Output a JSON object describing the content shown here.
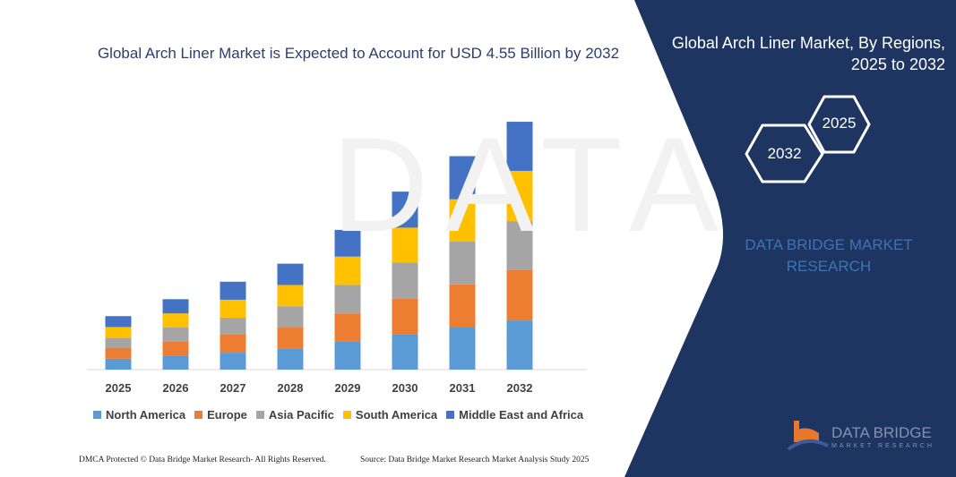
{
  "header": {
    "title": "Global Arch Liner Market is Expected to Account for USD 4.55  Billion by 2032"
  },
  "side_panel": {
    "title_line1": "Global Arch Liner Market, By Regions,",
    "title_line2": "2025 to 2032",
    "hex_start": "2025",
    "hex_end": "2032",
    "brand_line1": "DATA BRIDGE MARKET",
    "brand_line2": "RESEARCH"
  },
  "logo": {
    "line1": "DATA BRIDGE",
    "line2": "MARKET RESEARCH"
  },
  "footer": {
    "left": "DMCA Protected © Data Bridge Market Research- All Rights Reserved.",
    "right": "Source: Data Bridge Market Research  Market Analysis Study 2025"
  },
  "colors": {
    "panel": "#1e3461",
    "North America": "#5b9bd5",
    "Europe": "#ed7d31",
    "Asia Pacific": "#a5a5a5",
    "South America": "#ffc000",
    "Middle East and Africa": "#4472c4"
  },
  "chart_data": {
    "type": "bar",
    "stacked": true,
    "title": "Global Arch Liner Market is Expected to Account for USD 4.55  Billion by 2032",
    "categories": [
      "2025",
      "2026",
      "2027",
      "2028",
      "2029",
      "2030",
      "2031",
      "2032"
    ],
    "legend_position": "bottom",
    "grid": false,
    "series": [
      {
        "name": "North America",
        "values": [
          0.2,
          0.26,
          0.31,
          0.39,
          0.52,
          0.64,
          0.77,
          0.9
        ]
      },
      {
        "name": "Europe",
        "values": [
          0.2,
          0.26,
          0.33,
          0.38,
          0.51,
          0.66,
          0.79,
          0.92
        ]
      },
      {
        "name": "Asia Pacific",
        "values": [
          0.18,
          0.25,
          0.31,
          0.39,
          0.52,
          0.66,
          0.79,
          0.9
        ]
      },
      {
        "name": "South America",
        "values": [
          0.2,
          0.26,
          0.33,
          0.39,
          0.52,
          0.64,
          0.77,
          0.92
        ]
      },
      {
        "name": "Middle East and Africa",
        "values": [
          0.2,
          0.26,
          0.33,
          0.39,
          0.49,
          0.66,
          0.79,
          0.9
        ]
      }
    ]
  }
}
